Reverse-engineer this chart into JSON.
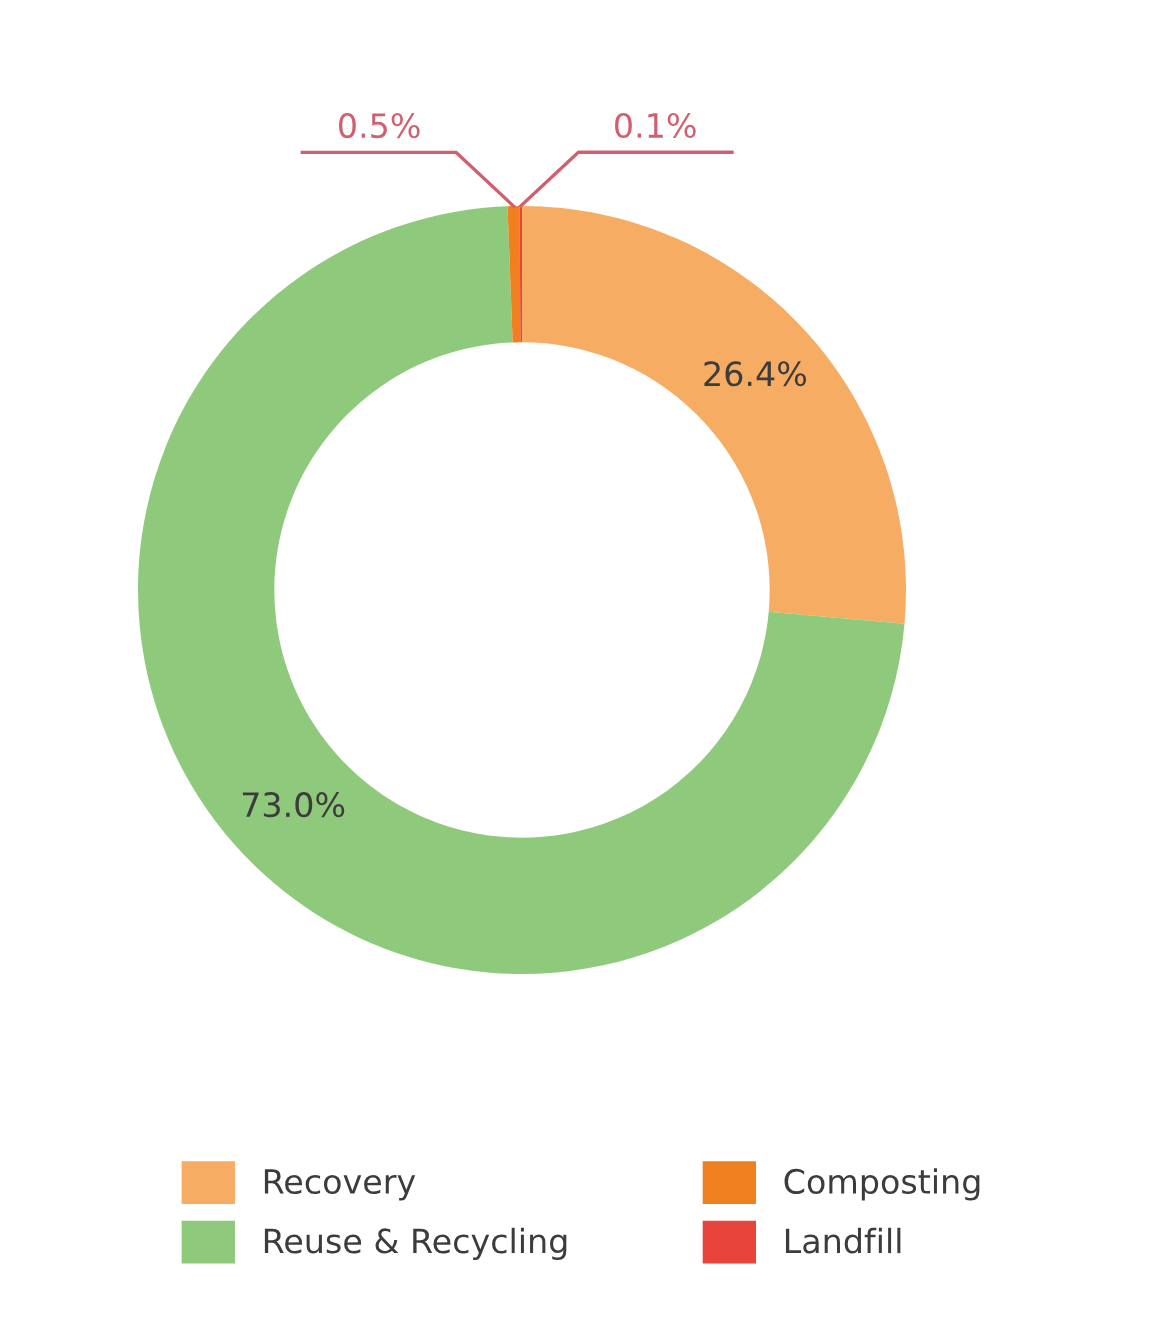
{
  "chart_data": {
    "type": "donut",
    "categories": [
      "Recovery",
      "Reuse & Recycling",
      "Composting",
      "Landfill"
    ],
    "values": [
      26.4,
      73.0,
      0.5,
      0.1
    ],
    "colors": [
      "#f6ac63",
      "#8fc97c",
      "#f07f1e",
      "#e8453a"
    ],
    "value_labels": [
      "26.4%",
      "73.0%",
      "0.5%",
      "0.1%"
    ],
    "legend": "bottom"
  }
}
